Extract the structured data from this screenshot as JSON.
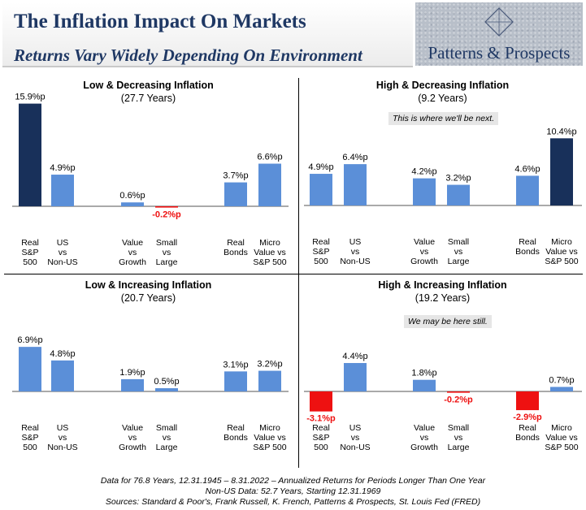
{
  "header": {
    "title": "The Inflation Impact On Markets",
    "subtitle": "Returns Vary Widely Depending On Environment",
    "logo_text": "Patterns & Prospects"
  },
  "colors": {
    "bar_default": "#5b8fd8",
    "bar_dark": "#18305a",
    "bar_negative": "#ee1111",
    "negative_label": "#ee1111",
    "title_blue": "#1f3864"
  },
  "categories": [
    [
      "Real",
      "S&P",
      "500"
    ],
    [
      "US",
      "vs",
      "Non-US"
    ],
    [
      "Value",
      "vs",
      "Growth"
    ],
    [
      "Small",
      "vs",
      "Large"
    ],
    [
      "Real",
      "Bonds"
    ],
    [
      "Micro",
      "Value vs",
      "S&P 500"
    ]
  ],
  "chart_data": [
    {
      "type": "bar",
      "title": "Low & Decreasing Inflation",
      "subtitle": "(27.7 Years)",
      "note": "",
      "values": [
        15.9,
        4.9,
        0.6,
        -0.2,
        3.7,
        6.6
      ],
      "labels": [
        "15.9%p",
        "4.9%p",
        "0.6%p",
        "-0.2%p",
        "3.7%p",
        "6.6%p"
      ],
      "highlight": [
        0
      ]
    },
    {
      "type": "bar",
      "title": "High & Decreasing Inflation",
      "subtitle": "(9.2 Years)",
      "note": "This is where we'll be next.",
      "values": [
        4.9,
        6.4,
        4.2,
        3.2,
        4.6,
        10.4
      ],
      "labels": [
        "4.9%p",
        "6.4%p",
        "4.2%p",
        "3.2%p",
        "4.6%p",
        "10.4%p"
      ],
      "highlight": [
        5
      ]
    },
    {
      "type": "bar",
      "title": "Low & Increasing Inflation",
      "subtitle": "(20.7 Years)",
      "note": "",
      "values": [
        6.9,
        4.8,
        1.9,
        0.5,
        3.1,
        3.2
      ],
      "labels": [
        "6.9%p",
        "4.8%p",
        "1.9%p",
        "0.5%p",
        "3.1%p",
        "3.2%p"
      ],
      "highlight": []
    },
    {
      "type": "bar",
      "title": "High & Increasing Inflation",
      "subtitle": "(19.2 Years)",
      "note": "We may be here still.",
      "values": [
        -3.1,
        4.4,
        1.8,
        -0.2,
        -2.9,
        0.7
      ],
      "labels": [
        "-3.1%p",
        "4.4%p",
        "1.8%p",
        "-0.2%p",
        "-2.9%p",
        "0.7%p"
      ],
      "highlight": []
    }
  ],
  "footer": {
    "line1": "Data for 76.8 Years, 12.31.1945 – 8.31.2022 –  Annualized Returns for Periods Longer Than One Year",
    "line2": "Non-US Data: 52.7 Years, Starting 12.31.1969",
    "line3": "Sources: Standard & Poor's, Frank Russell, K. French, Patterns & Prospects, St. Louis Fed (FRED)"
  }
}
